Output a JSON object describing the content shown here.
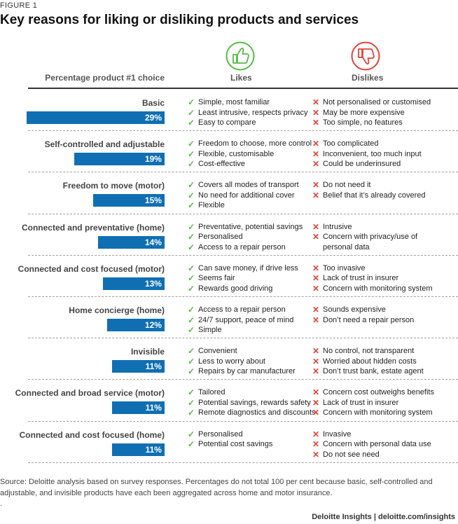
{
  "figure_label": "FIGURE 1",
  "title": "Key reasons for liking or disliking products and services",
  "header": {
    "choice_label": "Percentage product #1 choice",
    "likes_label": "Likes",
    "dislikes_label": "Dislikes"
  },
  "colors": {
    "bar": "#0f6fb2",
    "like_mark": "#57b846",
    "dislike_mark": "#e0443a"
  },
  "icons": {
    "likes": "thumbs-up-icon",
    "dislikes": "thumbs-down-icon",
    "like_mark": "check-icon",
    "dislike_mark": "cross-icon"
  },
  "chart_data": {
    "type": "bar",
    "orientation": "horizontal",
    "title": "Key reasons for liking or disliking products and services",
    "value_label": "Percentage product #1 choice",
    "unit": "%",
    "xlim": [
      0,
      29
    ],
    "categories": [
      "Basic",
      "Self-controlled and adjustable",
      "Freedom to move (motor)",
      "Connected and preventative (home)",
      "Connected and cost focused (motor)",
      "Home concierge (home)",
      "Invisible",
      "Connected and broad service (motor)",
      "Connected and cost focused (home)"
    ],
    "values": [
      29,
      19,
      15,
      14,
      13,
      12,
      11,
      11,
      11
    ],
    "labels": [
      "29%",
      "19%",
      "15%",
      "14%",
      "13%",
      "12%",
      "11%",
      "11%",
      "11%"
    ]
  },
  "rows": [
    {
      "likes": [
        "Simple, most familiar",
        "Least intrusive, respects privacy",
        "Easy to compare"
      ],
      "dislikes": [
        "Not personalised or customised",
        "May be more expensive",
        "Too simple, no features"
      ]
    },
    {
      "likes": [
        "Freedom to choose, more control",
        "Flexible, customisable",
        "Cost-effective"
      ],
      "dislikes": [
        "Too complicated",
        "Inconvenient, too much input",
        "Could be underinsured"
      ]
    },
    {
      "likes": [
        "Covers all modes of transport",
        "No need for additional cover",
        "Flexible"
      ],
      "dislikes": [
        "Do not need it",
        "Belief that it’s already covered"
      ]
    },
    {
      "likes": [
        "Preventative, potential savings",
        "Personalised",
        "Access to a repair person"
      ],
      "dislikes": [
        "Intrusive",
        "Concern with privacy/use of",
        "personal data"
      ]
    },
    {
      "likes": [
        "Can save money, if drive less",
        "Seems fair",
        "Rewards good driving"
      ],
      "dislikes": [
        "Too invasive",
        "Lack of trust in insurer",
        "Concern with monitoring system"
      ]
    },
    {
      "likes": [
        "Access to a repair person",
        "24/7 support, peace of mind",
        "Simple"
      ],
      "dislikes": [
        "Sounds expensive",
        "Don’t need a repair person"
      ]
    },
    {
      "likes": [
        "Convenient",
        "Less to worry about",
        "Repairs by car manufacturer"
      ],
      "dislikes": [
        "No control, not transparent",
        "Worried about hidden costs",
        "Don’t trust bank, estate agent"
      ]
    },
    {
      "likes": [
        "Tailored",
        "Potential savings, rewards safety",
        "Remote diagnostics and discounts"
      ],
      "dislikes": [
        "Concern cost outweighs benefits",
        "Lack of trust in insurer",
        "Concern with monitoring system"
      ]
    },
    {
      "likes": [
        "Personalised",
        "Potential cost savings"
      ],
      "dislikes": [
        "Invasive",
        "Concern with personal data use",
        "Do not see need"
      ]
    }
  ],
  "source": "Source: Deloitte analysis based on survey responses. Percentages do not total 100 per cent because basic, self-controlled and adjustable, and invisible products have each been aggregated across home and motor insurance.",
  "footer_dot": ".",
  "footer": "Deloitte Insights | deloitte.com/insights"
}
